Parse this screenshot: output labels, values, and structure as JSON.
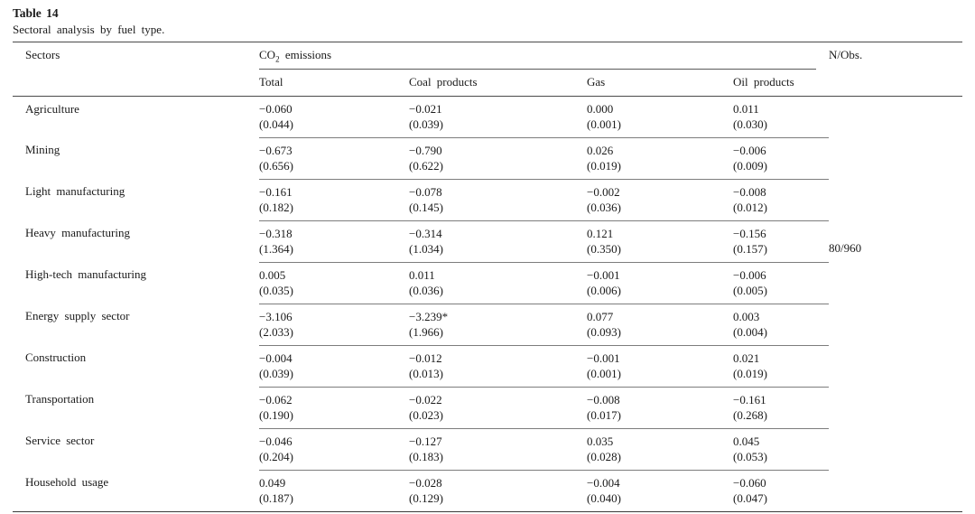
{
  "caption": {
    "label": "Table 14",
    "subtitle": "Sectoral analysis by fuel type."
  },
  "table": {
    "headers": {
      "sectors": "Sectors",
      "co2_prefix": "CO",
      "co2_sub": "2",
      "co2_suffix": " emissions",
      "nobs": "N/Obs."
    },
    "subheaders": [
      "Total",
      "Coal products",
      "Gas",
      "Oil products"
    ],
    "nobs_value": "80/960",
    "rows": [
      {
        "sector": "Agriculture",
        "total": [
          "−0.060",
          "(0.044)"
        ],
        "coal": [
          "−0.021",
          "(0.039)"
        ],
        "gas": [
          "0.000",
          "(0.001)"
        ],
        "oil": [
          "0.011",
          "(0.030)"
        ],
        "nobs": ""
      },
      {
        "sector": "Mining",
        "total": [
          "−0.673",
          "(0.656)"
        ],
        "coal": [
          "−0.790",
          "(0.622)"
        ],
        "gas": [
          "0.026",
          "(0.019)"
        ],
        "oil": [
          "−0.006",
          "(0.009)"
        ],
        "nobs": ""
      },
      {
        "sector": "Light manufacturing",
        "total": [
          "−0.161",
          "(0.182)"
        ],
        "coal": [
          "−0.078",
          "(0.145)"
        ],
        "gas": [
          "−0.002",
          "(0.036)"
        ],
        "oil": [
          "−0.008",
          "(0.012)"
        ],
        "nobs": ""
      },
      {
        "sector": "Heavy manufacturing",
        "total": [
          "−0.318",
          "(1.364)"
        ],
        "coal": [
          "−0.314",
          "(1.034)"
        ],
        "gas": [
          "0.121",
          "(0.350)"
        ],
        "oil": [
          "−0.156",
          "(0.157)"
        ],
        "nobs": "80/960"
      },
      {
        "sector": "High-tech manufacturing",
        "total": [
          "0.005",
          "(0.035)"
        ],
        "coal": [
          "0.011",
          "(0.036)"
        ],
        "gas": [
          "−0.001",
          "(0.006)"
        ],
        "oil": [
          "−0.006",
          "(0.005)"
        ],
        "nobs": ""
      },
      {
        "sector": "Energy supply sector",
        "total": [
          "−3.106",
          "(2.033)"
        ],
        "coal": [
          "−3.239*",
          "(1.966)"
        ],
        "gas": [
          "0.077",
          "(0.093)"
        ],
        "oil": [
          "0.003",
          "(0.004)"
        ],
        "nobs": ""
      },
      {
        "sector": "Construction",
        "total": [
          "−0.004",
          "(0.039)"
        ],
        "coal": [
          "−0.012",
          "(0.013)"
        ],
        "gas": [
          "−0.001",
          "(0.001)"
        ],
        "oil": [
          "0.021",
          "(0.019)"
        ],
        "nobs": ""
      },
      {
        "sector": "Transportation",
        "total": [
          "−0.062",
          "(0.190)"
        ],
        "coal": [
          "−0.022",
          "(0.023)"
        ],
        "gas": [
          "−0.008",
          "(0.017)"
        ],
        "oil": [
          "−0.161",
          "(0.268)"
        ],
        "nobs": ""
      },
      {
        "sector": "Service sector",
        "total": [
          "−0.046",
          "(0.204)"
        ],
        "coal": [
          "−0.127",
          "(0.183)"
        ],
        "gas": [
          "0.035",
          "(0.028)"
        ],
        "oil": [
          "0.045",
          "(0.053)"
        ],
        "nobs": ""
      },
      {
        "sector": "Household usage",
        "total": [
          "0.049",
          "(0.187)"
        ],
        "coal": [
          "−0.028",
          "(0.129)"
        ],
        "gas": [
          "−0.004",
          "(0.040)"
        ],
        "oil": [
          "−0.060",
          "(0.047)"
        ],
        "nobs": ""
      }
    ]
  }
}
